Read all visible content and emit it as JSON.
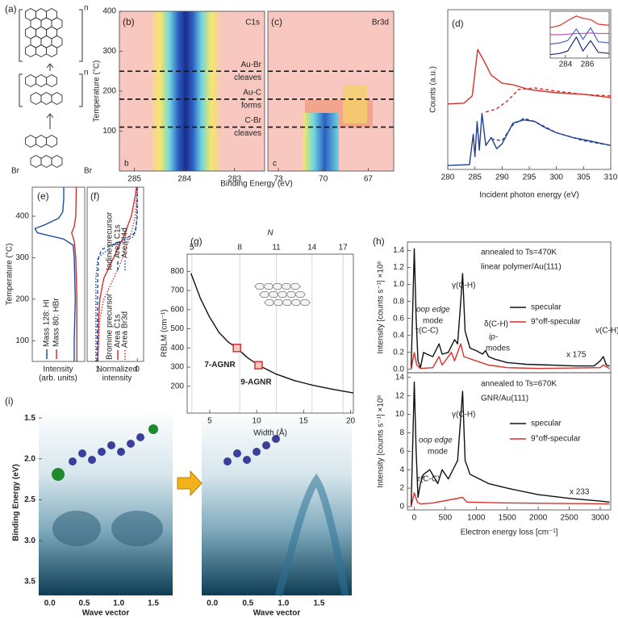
{
  "structure": {
    "label": "(a)",
    "n_top": "n",
    "n_middle": "n",
    "br_left": "Br",
    "br_right": "Br"
  },
  "chart_data": [
    {
      "type": "heatmap",
      "label": "(b)",
      "corner_label": "b",
      "title": "C1s",
      "xlabel": "Binding Energy (eV)",
      "ylabel": "Temperature (°C)",
      "xlim": [
        285.3,
        282.4
      ],
      "xticks": [
        285,
        284,
        283
      ],
      "ylim": [
        0,
        400
      ],
      "yticks": [
        100,
        200,
        300,
        400
      ],
      "hlines": [
        {
          "value": 250,
          "label": [
            "Au-Br",
            "cleaves"
          ]
        },
        {
          "value": 180,
          "label": [
            "Au-C",
            "forms"
          ]
        },
        {
          "value": 110,
          "label": [
            "C-Br",
            "cleaves"
          ]
        }
      ]
    },
    {
      "type": "heatmap",
      "label": "(c)",
      "corner_label": "c",
      "title": "Br3d",
      "xlim": [
        73.7,
        65.3
      ],
      "xticks": [
        73,
        70,
        67
      ],
      "ylim": [
        0,
        400
      ],
      "hlines": [
        250,
        180,
        110
      ]
    },
    {
      "type": "line",
      "label": "(d)",
      "xlabel": "Incident photon energy (eV)",
      "ylabel": "Counts (a.u.)",
      "xlim": [
        280,
        310
      ],
      "xticks": [
        280,
        285,
        290,
        295,
        300,
        305,
        310
      ],
      "ylim": [
        0,
        10
      ],
      "series": [
        {
          "color": "#d9302c",
          "x": [
            280,
            283,
            284.5,
            285.5,
            286.5,
            288,
            290,
            292,
            295,
            300,
            305,
            310
          ],
          "values": [
            4.1,
            4.15,
            4.6,
            7.5,
            6.9,
            5.9,
            5.4,
            5.3,
            5.0,
            4.8,
            4.7,
            4.5
          ]
        },
        {
          "color": "#d9302c",
          "dash": "dashed",
          "x": [
            287,
            289,
            291,
            293,
            296,
            300,
            305,
            310
          ],
          "values": [
            3.6,
            3.8,
            4.3,
            5.0,
            5.1,
            4.9,
            4.7,
            4.6
          ]
        },
        {
          "color": "#233f94",
          "x": [
            280,
            284,
            284.7,
            285,
            285.4,
            285.8,
            286.3,
            287,
            288,
            289,
            290,
            292,
            294,
            296,
            298,
            300,
            303,
            306,
            310
          ],
          "values": [
            0.25,
            0.3,
            2.2,
            0.8,
            3.0,
            1.2,
            3.5,
            1.5,
            2.0,
            1.3,
            1.6,
            2.9,
            3.1,
            3.0,
            2.6,
            2.3,
            2.0,
            1.8,
            1.5
          ]
        },
        {
          "color": "#233f94",
          "dash": "dashed",
          "x": [
            288,
            290,
            292,
            294,
            296,
            300,
            305,
            310
          ],
          "values": [
            1.9,
            1.8,
            2.8,
            3.2,
            3.0,
            2.3,
            1.8,
            1.5
          ]
        }
      ]
    },
    {
      "type": "line",
      "xlim": [
        282.6,
        288
      ],
      "xticks": [
        284,
        286
      ],
      "ylim": [
        0,
        4
      ],
      "series": [
        {
          "color": "#d9302c",
          "x": [
            282.6,
            283.5,
            284.2,
            285,
            285.6,
            286.3,
            287,
            288
          ],
          "values": [
            2.6,
            2.8,
            3.2,
            3.6,
            3.4,
            3.3,
            2.9,
            2.8
          ]
        },
        {
          "color": "#d04fc0",
          "x": [
            282.6,
            283.5,
            284.2,
            285,
            285.6,
            286.3,
            287,
            288
          ],
          "values": [
            2.0,
            2.0,
            2.05,
            2.1,
            2.1,
            2.15,
            2.1,
            2.1
          ]
        },
        {
          "color": "#4a63c9",
          "x": [
            282.6,
            283.5,
            284.2,
            285,
            285.6,
            286.3,
            287,
            288
          ],
          "values": [
            1.2,
            1.3,
            1.5,
            2.5,
            1.6,
            2.6,
            1.4,
            1.3
          ]
        },
        {
          "color": "#1b2a78",
          "x": [
            282.6,
            283.5,
            284.2,
            285,
            285.6,
            286.3,
            287,
            288
          ],
          "values": [
            0.3,
            0.4,
            0.6,
            1.8,
            0.6,
            1.5,
            0.5,
            0.4
          ]
        }
      ]
    },
    {
      "type": "line",
      "orientation": "vertical",
      "label": "(e)",
      "xlabel": [
        "Intensity",
        "(arb. units)"
      ],
      "ylabel": "Temperature (°C)",
      "xlim": [
        0,
        1
      ],
      "ylim": [
        50,
        470
      ],
      "yticks": [
        100,
        200,
        300,
        400
      ],
      "series": [
        {
          "name": "Mass 128: HI",
          "color": "#1f4fa0",
          "y": [
            50,
            100,
            200,
            300,
            330,
            345,
            360,
            370,
            380,
            395,
            410,
            440,
            470
          ],
          "values": [
            0.8,
            0.8,
            0.82,
            0.8,
            0.78,
            0.6,
            0.1,
            0.05,
            0.25,
            0.5,
            0.58,
            0.6,
            0.6
          ]
        },
        {
          "name": "Mass 80: HBr",
          "color": "#d9302c",
          "y": [
            50,
            200,
            300,
            340,
            360,
            375,
            400,
            470
          ],
          "values": [
            0.85,
            0.85,
            0.83,
            0.8,
            0.75,
            0.8,
            0.83,
            0.84
          ]
        }
      ]
    },
    {
      "type": "line",
      "orientation": "vertical",
      "label": "(f)",
      "xlabel": [
        "Normalized",
        "intensity"
      ],
      "xlim": [
        1.27,
        -0.16
      ],
      "xticks": [
        1,
        0
      ],
      "ylim": [
        50,
        470
      ],
      "legend_groups": [
        "Iodine precursor",
        "Bromine precursor"
      ],
      "series": [
        {
          "name": "Area C1s",
          "color": "#1f4fa0",
          "dash": "dashed",
          "y": [
            50,
            250,
            300,
            320,
            340,
            360,
            400,
            470
          ],
          "values": [
            1.02,
            1.0,
            0.98,
            0.9,
            0.4,
            0.05,
            0.0,
            0.0
          ]
        },
        {
          "name": "Area I4d",
          "color": "#1f4fa0",
          "dash": "dotted",
          "y": [
            50,
            250,
            300,
            330,
            350,
            380,
            470
          ],
          "values": [
            1.05,
            1.05,
            1.0,
            0.6,
            0.1,
            0.02,
            0.0
          ]
        },
        {
          "name": "Area C1s",
          "color": "#d9302c",
          "y": [
            50,
            150,
            200,
            250,
            300,
            350,
            400,
            450,
            470
          ],
          "values": [
            1.0,
            0.98,
            0.95,
            0.85,
            0.6,
            0.35,
            0.15,
            0.05,
            0.02
          ]
        },
        {
          "name": "Area Br3d",
          "color": "#d9302c",
          "dash": "dotted",
          "y": [
            50,
            150,
            200,
            240,
            280,
            320,
            360,
            400,
            470
          ],
          "values": [
            1.0,
            0.95,
            0.85,
            0.65,
            0.45,
            0.3,
            0.15,
            0.05,
            0.0
          ]
        }
      ]
    },
    {
      "type": "line",
      "label": "(g)",
      "xlabel": "Width (Å)",
      "ylabel": "RBLM (cm⁻¹)",
      "x2label": "N",
      "xlim": [
        2.6,
        20.3
      ],
      "xticks": [
        5,
        10,
        15,
        20
      ],
      "x2ticks": [
        {
          "value": 3.1,
          "label": "5"
        },
        {
          "value": 8.2,
          "label": "8"
        },
        {
          "value": 12.1,
          "label": "11"
        },
        {
          "value": 15.9,
          "label": "14"
        },
        {
          "value": 19.2,
          "label": "17"
        }
      ],
      "ylim": [
        60,
        890
      ],
      "yticks": [
        200,
        300,
        400,
        500,
        600,
        700,
        800
      ],
      "series": [
        {
          "color": "#111111",
          "x": [
            3,
            4,
            5,
            6,
            7,
            7.9,
            9,
            10.2,
            12,
            14,
            16,
            18,
            20.3
          ],
          "values": [
            790,
            660,
            560,
            480,
            430,
            400,
            350,
            310,
            265,
            230,
            205,
            185,
            165
          ]
        }
      ],
      "points": [
        {
          "x": 7.9,
          "value": 400,
          "label": "7-AGNR"
        },
        {
          "x": 10.2,
          "value": 310,
          "label": "9-AGNR"
        }
      ],
      "point_color": "#d9302c"
    },
    {
      "type": "line",
      "label": "(h)",
      "ylabel": "Intensity [counts s⁻¹] ×10⁶",
      "xlim": [
        -110,
        3170
      ],
      "ylim": [
        -0.04,
        1.5
      ],
      "yticks": [
        {
          "value": 0,
          "label": "0.0"
        },
        0.2,
        0.4,
        0.6,
        0.8,
        {
          "value": 1,
          "label": "1.0"
        },
        1.2,
        1.4
      ],
      "annotations": [
        "annealed to Ts=470K",
        "linear polymer/Au(111)",
        "γ(C-H)",
        "oop edge",
        "mode",
        "δ(C-H)",
        "ip-",
        "modes",
        "τ(C-C)",
        "ν(C-H)",
        "x 175"
      ],
      "series": [
        {
          "name": "specular",
          "color": "#111111",
          "x": [
            -50,
            0,
            30,
            60,
            100,
            150,
            200,
            300,
            400,
            450,
            550,
            650,
            700,
            750,
            780,
            820,
            900,
            1000,
            1100,
            1150,
            1200,
            1300,
            1500,
            1800,
            2200,
            2600,
            2900,
            3000,
            3050,
            3100,
            3150
          ],
          "values": [
            0,
            1.42,
            0.6,
            0.1,
            0.02,
            0.2,
            0.18,
            0.15,
            0.3,
            0.18,
            0.2,
            0.35,
            0.3,
            0.8,
            1.13,
            0.45,
            0.25,
            0.22,
            0.18,
            0.22,
            0.15,
            0.12,
            0.08,
            0.06,
            0.05,
            0.04,
            0.04,
            0.1,
            0.15,
            0.05,
            0.04
          ]
        },
        {
          "name": "9°off-specular",
          "color": "#d9302c",
          "x": [
            -50,
            0,
            40,
            100,
            300,
            400,
            450,
            600,
            650,
            750,
            800,
            1000,
            1200,
            1500,
            2000,
            3000,
            3050,
            3150
          ],
          "values": [
            0,
            0.2,
            0.05,
            0.01,
            0.02,
            0.15,
            0.05,
            0.2,
            0.1,
            0.3,
            0.15,
            0.1,
            0.05,
            0.02,
            0.01,
            0.02,
            0.05,
            0.01
          ]
        }
      ]
    },
    {
      "type": "line",
      "ylabel": "Intensity [counts s⁻¹] ×10⁶",
      "xlabel": "Electron energy loss [cm⁻¹]",
      "xlim": [
        -110,
        3170
      ],
      "xticks": [
        0,
        500,
        1000,
        1500,
        2000,
        2500,
        3000
      ],
      "ylim": [
        -0.35,
        14.5
      ],
      "yticks": [
        0,
        2,
        4,
        6,
        8,
        10,
        12,
        14
      ],
      "annotations": [
        "annealed to Ts=670K",
        "GNR/Au(111)",
        "γ(C-H)",
        "oop edge",
        "mode",
        "τ(C-C)",
        "x 233"
      ],
      "series": [
        {
          "name": "specular",
          "color": "#111111",
          "x": [
            -50,
            0,
            30,
            60,
            100,
            150,
            250,
            380,
            450,
            550,
            700,
            780,
            820,
            900,
            1200,
            1500,
            2000,
            2500,
            3000,
            3150
          ],
          "values": [
            0,
            13.5,
            6,
            1,
            2.5,
            3.5,
            4,
            2.5,
            4,
            3,
            5,
            12.5,
            5,
            3.5,
            2.5,
            2,
            1.3,
            0.9,
            0.6,
            0.5
          ]
        },
        {
          "name": "9°off-specular",
          "color": "#d9302c",
          "x": [
            -50,
            0,
            50,
            100,
            300,
            780,
            850,
            1500,
            3150
          ],
          "values": [
            0,
            1.5,
            0.5,
            0.3,
            0.4,
            1,
            0.5,
            0.4,
            0.3
          ]
        }
      ]
    },
    {
      "type": "image",
      "label": "(i)",
      "ylabel": "Binding Energy (eV)",
      "xlabel": "Wave vector",
      "xlim": [
        -0.16,
        1.78
      ],
      "xticks": [
        {
          "value": 0,
          "label": "0.0"
        },
        0.5,
        {
          "value": 1,
          "label": "1.0"
        },
        1.5
      ],
      "ylim": [
        3.67,
        1.4
      ],
      "yticks": [
        1.5,
        {
          "value": 2,
          "label": "2.0"
        },
        2.5,
        {
          "value": 3,
          "label": "3.0"
        },
        3.5
      ]
    },
    {
      "type": "image",
      "xlabel": "Wave vector",
      "xlim": [
        -0.15,
        1.96
      ],
      "xticks": [
        {
          "value": 0,
          "label": "0.0"
        },
        0.5,
        {
          "value": 1,
          "label": "1.0"
        },
        1.5
      ],
      "ylim": [
        3.67,
        1.4
      ]
    }
  ]
}
